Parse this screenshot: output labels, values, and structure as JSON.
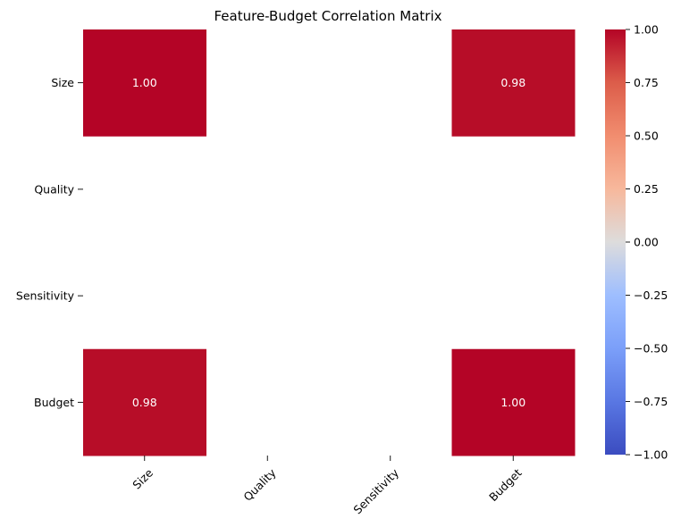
{
  "chart_data": {
    "type": "heatmap",
    "title": "Feature-Budget Correlation Matrix",
    "row_labels": [
      "Size",
      "Quality",
      "Sensitivity",
      "Budget"
    ],
    "col_labels": [
      "Size",
      "Quality",
      "Sensitivity",
      "Budget"
    ],
    "values": [
      [
        1.0,
        null,
        null,
        0.98
      ],
      [
        null,
        null,
        null,
        null
      ],
      [
        null,
        null,
        null,
        null
      ],
      [
        0.98,
        null,
        null,
        1.0
      ]
    ],
    "annotations": [
      [
        "1.00",
        "",
        "",
        "0.98"
      ],
      [
        "",
        "",
        "",
        ""
      ],
      [
        "",
        "",
        "",
        ""
      ],
      [
        "0.98",
        "",
        "",
        "1.00"
      ]
    ],
    "colormap": "coolwarm",
    "vmin": -1.0,
    "vmax": 1.0,
    "colorbar_ticks": [
      "1.00",
      "0.75",
      "0.50",
      "0.25",
      "0.00",
      "−0.25",
      "−0.50",
      "−0.75",
      "−1.00"
    ],
    "colorbar_tick_values": [
      1.0,
      0.75,
      0.5,
      0.25,
      0.0,
      -0.25,
      -0.5,
      -0.75,
      -1.0
    ],
    "colors": {
      "cell_1_00": "#b40426",
      "cell_0_98": "#b70d28",
      "annotation_text": "#ffffff"
    }
  }
}
